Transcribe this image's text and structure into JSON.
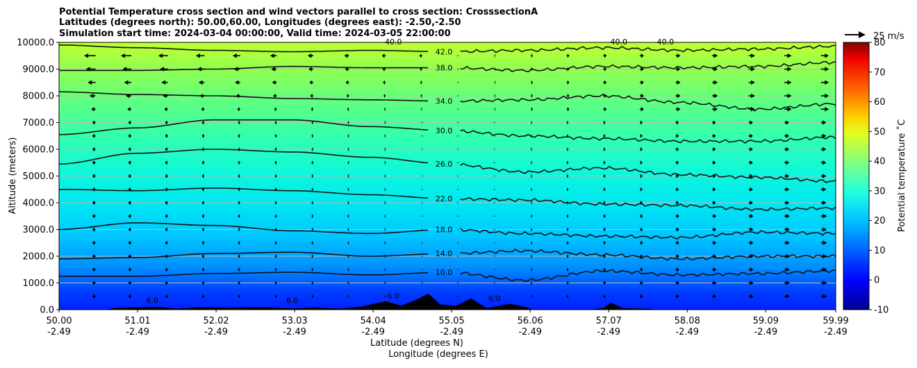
{
  "title_lines": [
    "Potential Temperature cross section and wind vectors parallel to cross section: CrosssectionA",
    "Latitudes (degrees north): 50.00,60.00, Longitudes (degrees east): -2.50,-2.50",
    "Simulation start time: 2024-03-04 00:00:00, Valid time: 2024-03-05 22:00:00"
  ],
  "quiver_key": {
    "label": "25 m/s"
  },
  "chart_data": {
    "type": "heatmap",
    "subtype": "filled contour cross-section with wind vectors",
    "ylabel": "Altitude (meters)",
    "xlabel_lines": [
      "Latitude (degrees N)",
      "Longitude (degrees E)"
    ],
    "ylim": [
      0,
      10000
    ],
    "xlim": [
      50.0,
      59.99
    ],
    "y_ticks": [
      0,
      1000,
      2000,
      3000,
      4000,
      5000,
      6000,
      7000,
      8000,
      9000,
      10000
    ],
    "y_tick_labels": [
      "0.0",
      "1000.0",
      "2000.0",
      "3000.0",
      "4000.0",
      "5000.0",
      "6000.0",
      "7000.0",
      "8000.0",
      "9000.0",
      "10000.0"
    ],
    "x_ticks": [
      50.0,
      51.01,
      52.02,
      53.03,
      54.04,
      55.05,
      56.06,
      57.07,
      58.08,
      59.09,
      59.99
    ],
    "x_tick_labels_lat": [
      "50.00",
      "51.01",
      "52.02",
      "53.03",
      "54.04",
      "55.05",
      "56.06",
      "57.07",
      "58.08",
      "59.09",
      "59.99"
    ],
    "x_tick_labels_lon": [
      "-2.49",
      "-2.49",
      "-2.49",
      "-2.49",
      "-2.49",
      "-2.49",
      "-2.49",
      "-2.49",
      "-2.49",
      "-2.49",
      "-2.49"
    ],
    "grid": "horizontal",
    "colorbar": {
      "label": "Potential temperature $^\\circ$C",
      "label_display": "Potential temperature ˚C",
      "range": [
        -10,
        80
      ],
      "ticks": [
        -10,
        0,
        10,
        20,
        30,
        40,
        50,
        60,
        70,
        80
      ],
      "colormap": "jet"
    },
    "contours": [
      {
        "level": 10.0,
        "label": "10.0",
        "alt": [
          1250,
          1250,
          1350,
          1400,
          1300,
          1400,
          1100,
          1450,
          1300,
          1350,
          1450
        ]
      },
      {
        "level": 14.0,
        "label": "14.0",
        "alt": [
          1900,
          1950,
          2100,
          2150,
          2000,
          2100,
          2200,
          2050,
          1900,
          2000,
          2000
        ]
      },
      {
        "level": 18.0,
        "label": "18.0",
        "alt": [
          3000,
          3250,
          3150,
          2950,
          2850,
          3000,
          2850,
          2750,
          2700,
          2900,
          2850
        ]
      },
      {
        "level": 22.0,
        "label": "22.0",
        "alt": [
          4500,
          4450,
          4550,
          4450,
          4300,
          4150,
          4100,
          3950,
          3900,
          3750,
          3800
        ]
      },
      {
        "level": 26.0,
        "label": "26.0",
        "alt": [
          5450,
          5850,
          6000,
          5900,
          5700,
          5450,
          5150,
          5300,
          5050,
          4950,
          4800
        ]
      },
      {
        "level": 30.0,
        "label": "30.0",
        "alt": [
          6550,
          6800,
          7100,
          7100,
          6850,
          6700,
          6500,
          6400,
          6300,
          6300,
          6450
        ]
      },
      {
        "level": 34.0,
        "label": "34.0",
        "alt": [
          8150,
          8050,
          8000,
          7900,
          7850,
          7800,
          7850,
          8000,
          7750,
          7500,
          7700
        ]
      },
      {
        "level": 38.0,
        "label": "38.0",
        "alt": [
          8950,
          8950,
          9000,
          9100,
          9050,
          9050,
          8950,
          9100,
          9050,
          9100,
          9250
        ]
      },
      {
        "level": 42.0,
        "label": "42.0",
        "alt": [
          9900,
          9800,
          9700,
          9650,
          9700,
          9650,
          9700,
          9800,
          9700,
          9750,
          9850
        ]
      }
    ],
    "upper_labels": [
      "40.0",
      "40.0",
      "40.0"
    ],
    "terrain_label": "6.0",
    "terrain_max_alt": 600,
    "wind_vectors": {
      "rows_alt": [
        500,
        1000,
        1500,
        2000,
        2500,
        3000,
        3500,
        4000,
        4500,
        5000,
        5500,
        6000,
        6500,
        7000,
        7500,
        8000,
        8500,
        9000,
        9500
      ],
      "cols_lat": [
        50.0,
        50.47,
        50.93,
        51.4,
        51.87,
        52.33,
        52.8,
        53.27,
        53.73,
        54.2,
        54.67,
        55.13,
        55.6,
        56.07,
        56.53,
        57.0,
        57.47,
        57.93,
        58.4,
        58.87,
        59.33,
        59.8
      ],
      "note": "westward (pointing south) in southern half, northward in northern half"
    }
  }
}
